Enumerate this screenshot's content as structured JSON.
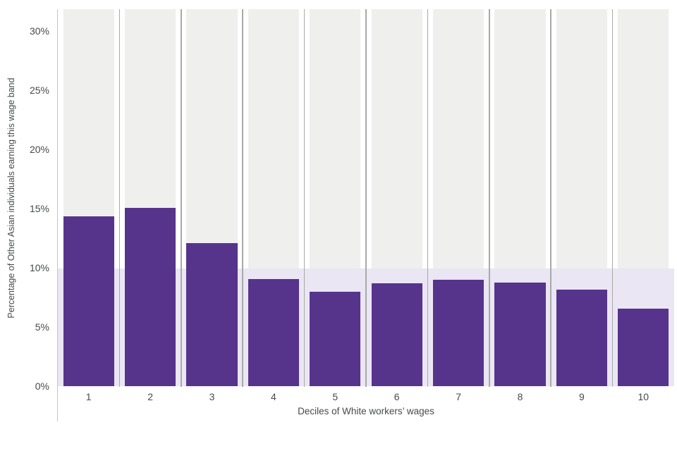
{
  "chart_data": {
    "type": "bar",
    "title": "",
    "xlabel": "Deciles of White workers’ wages",
    "ylabel": "Percentage of Other Asian individuals earning this wage band",
    "categories": [
      "1",
      "2",
      "3",
      "4",
      "5",
      "6",
      "7",
      "8",
      "9",
      "10"
    ],
    "values": [
      14.4,
      15.1,
      12.1,
      9.1,
      8.0,
      8.7,
      9.0,
      8.8,
      8.2,
      6.6
    ],
    "series_name": "Percentage of Other Asian individuals earning this wage band",
    "y_ticks": [
      {
        "value": 0,
        "label": "0%"
      },
      {
        "value": 5,
        "label": "5%"
      },
      {
        "value": 10,
        "label": "10%"
      },
      {
        "value": 15,
        "label": "15%"
      },
      {
        "value": 20,
        "label": "20%"
      },
      {
        "value": 25,
        "label": "25%"
      },
      {
        "value": 30,
        "label": "30%"
      }
    ],
    "ylim": [
      0,
      31.9
    ],
    "reference_band": {
      "from": 0,
      "to": 10
    },
    "grid": "vertical-lines-between-category-columns",
    "legend": "none",
    "colors": {
      "bar": "#56348C",
      "reference_band": "#EAE6F4",
      "column_background": "#EFEFEE",
      "gridline": "#ABA9A7",
      "axis_line": "#C6C4C2",
      "text": "#47494C",
      "background": "#FFFFFF"
    }
  }
}
